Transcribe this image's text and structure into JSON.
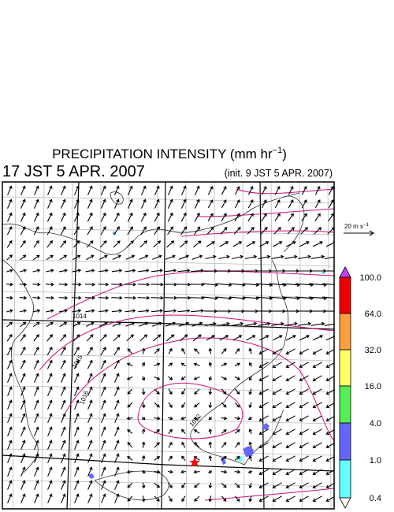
{
  "title": {
    "text": "PRECIPITATION INTENSITY (mm hr",
    "exponent": "−1",
    "closing": ")"
  },
  "valid_time": "17 JST 5 APR. 2007",
  "init_time": "(init. 9 JST 5 APR. 2007)",
  "vector_scale": {
    "text": "20 m s",
    "exponent": "−1"
  },
  "colorbar": {
    "labels": [
      "0.4",
      "1.0",
      "4.0",
      "16.0",
      "32.0",
      "64.0",
      "100.0"
    ]
  },
  "contour_labels": [
    "1014",
    "1015",
    "1016",
    "1012"
  ]
}
